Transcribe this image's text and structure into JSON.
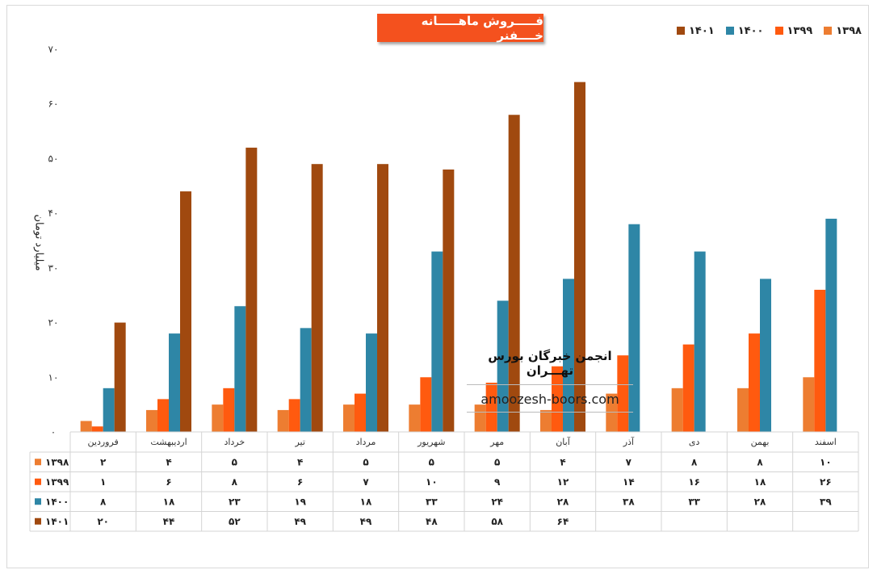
{
  "chart_data": {
    "type": "bar",
    "title": "فـــــروش ماهـــــانه خــــفنر",
    "ylabel": "میلیارد تومان",
    "ylim": [
      0,
      70
    ],
    "y_ticks": [
      "۰",
      "۱۰",
      "۲۰",
      "۳۰",
      "۴۰",
      "۵۰",
      "۶۰",
      "۷۰"
    ],
    "categories": [
      "فروردین",
      "اردیبهشت",
      "خرداد",
      "تیر",
      "مرداد",
      "شهریور",
      "مهر",
      "آبان",
      "آذر",
      "دی",
      "بهمن",
      "اسفند"
    ],
    "series": [
      {
        "name": "۱۳۹۸",
        "color": "#ed7d31",
        "values": [
          2,
          4,
          5,
          4,
          5,
          5,
          5,
          4,
          7,
          8,
          8,
          10
        ],
        "labels": [
          "۲",
          "۴",
          "۵",
          "۴",
          "۵",
          "۵",
          "۵",
          "۴",
          "۷",
          "۸",
          "۸",
          "۱۰"
        ]
      },
      {
        "name": "۱۳۹۹",
        "color": "#ff5a0f",
        "values": [
          1,
          6,
          8,
          6,
          7,
          10,
          9,
          12,
          14,
          16,
          18,
          26
        ],
        "labels": [
          "۱",
          "۶",
          "۸",
          "۶",
          "۷",
          "۱۰",
          "۹",
          "۱۲",
          "۱۴",
          "۱۶",
          "۱۸",
          "۲۶"
        ]
      },
      {
        "name": "۱۴۰۰",
        "color": "#2e86a6",
        "values": [
          8,
          18,
          23,
          19,
          18,
          33,
          24,
          28,
          38,
          33,
          28,
          39
        ],
        "labels": [
          "۸",
          "۱۸",
          "۲۳",
          "۱۹",
          "۱۸",
          "۳۳",
          "۲۴",
          "۲۸",
          "۳۸",
          "۳۳",
          "۲۸",
          "۳۹"
        ]
      },
      {
        "name": "۱۴۰۱",
        "color": "#a0490f",
        "values": [
          20,
          44,
          52,
          49,
          49,
          48,
          58,
          64,
          null,
          null,
          null,
          null
        ],
        "labels": [
          "۲۰",
          "۴۴",
          "۵۲",
          "۴۹",
          "۴۹",
          "۴۸",
          "۵۸",
          "۶۴",
          "",
          "",
          "",
          ""
        ]
      }
    ],
    "legend_position": "top-right",
    "grid": false
  },
  "watermark": {
    "title": "انجمن خبرگان بورس تهـــران",
    "url": "amoozesh-boors.com"
  }
}
